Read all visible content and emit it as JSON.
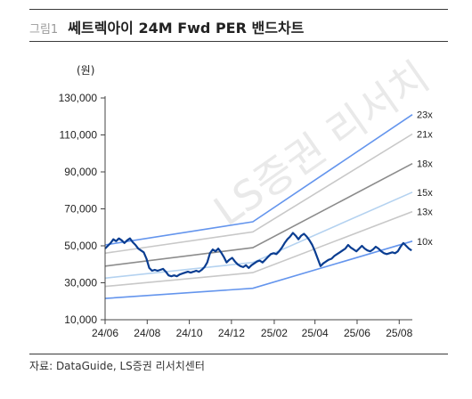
{
  "figure": {
    "label": "그림1",
    "title": "쎄트렉아이 24M Fwd PER 밴드차트",
    "source": "자료: DataGuide, LS증권 리서치센터",
    "watermark": "LS증권 리서치"
  },
  "chart_data": {
    "type": "line",
    "title": "쎄트렉아이 24M Fwd PER 밴드차트",
    "unit_label": "(원)",
    "xlabel": "",
    "ylabel": "",
    "ylim": [
      10000,
      130000
    ],
    "y_ticks": [
      10000,
      30000,
      50000,
      70000,
      90000,
      110000,
      130000
    ],
    "y_tick_labels": [
      "10,000",
      "30,000",
      "50,000",
      "70,000",
      "90,000",
      "110,000",
      "130,000"
    ],
    "x_ticks": [
      "2024-06-01",
      "2024-08-01",
      "2024-10-01",
      "2024-12-01",
      "2025-02-01",
      "2025-04-01",
      "2025-06-01",
      "2025-08-01"
    ],
    "x_tick_labels": [
      "24/06",
      "24/08",
      "24/10",
      "24/12",
      "25/02",
      "25/04",
      "25/06",
      "25/08"
    ],
    "x_range": [
      "2024-06-01",
      "2025-08-20"
    ],
    "grid": false,
    "legend": "right-end labels",
    "bands": [
      {
        "label": "23x",
        "color": "#6495ed",
        "points": [
          [
            "2024-06-01",
            50500
          ],
          [
            "2025-01-01",
            63000
          ],
          [
            "2025-08-20",
            121000
          ]
        ]
      },
      {
        "label": "21x",
        "color": "#c8c8c8",
        "points": [
          [
            "2024-06-01",
            46000
          ],
          [
            "2025-01-01",
            57500
          ],
          [
            "2025-08-20",
            110500
          ]
        ]
      },
      {
        "label": "18x",
        "color": "#8c8c8c",
        "points": [
          [
            "2024-06-01",
            39000
          ],
          [
            "2025-01-01",
            49000
          ],
          [
            "2025-08-20",
            94500
          ]
        ]
      },
      {
        "label": "15x",
        "color": "#b4d2f0",
        "points": [
          [
            "2024-06-01",
            32500
          ],
          [
            "2025-01-01",
            41000
          ],
          [
            "2025-08-20",
            79000
          ]
        ]
      },
      {
        "label": "13x",
        "color": "#c8c8c8",
        "points": [
          [
            "2024-06-01",
            28000
          ],
          [
            "2025-01-01",
            35500
          ],
          [
            "2025-08-20",
            68500
          ]
        ]
      },
      {
        "label": "10x",
        "color": "#6495ed",
        "points": [
          [
            "2024-06-01",
            21500
          ],
          [
            "2025-01-01",
            27000
          ],
          [
            "2025-08-20",
            52500
          ]
        ]
      }
    ],
    "series": [
      {
        "color": "#0a3d91",
        "points": [
          [
            "2024-06-01",
            48500
          ],
          [
            "2024-06-05",
            50000
          ],
          [
            "2024-06-09",
            51500
          ],
          [
            "2024-06-13",
            53500
          ],
          [
            "2024-06-17",
            52500
          ],
          [
            "2024-06-21",
            54000
          ],
          [
            "2024-06-25",
            53000
          ],
          [
            "2024-06-29",
            51500
          ],
          [
            "2024-07-03",
            53000
          ],
          [
            "2024-07-07",
            54000
          ],
          [
            "2024-07-11",
            52000
          ],
          [
            "2024-07-15",
            50500
          ],
          [
            "2024-07-19",
            48500
          ],
          [
            "2024-07-23",
            47500
          ],
          [
            "2024-07-27",
            46500
          ],
          [
            "2024-07-31",
            43000
          ],
          [
            "2024-08-04",
            38000
          ],
          [
            "2024-08-08",
            36500
          ],
          [
            "2024-08-12",
            37000
          ],
          [
            "2024-08-16",
            36500
          ],
          [
            "2024-08-20",
            37000
          ],
          [
            "2024-08-24",
            37500
          ],
          [
            "2024-08-28",
            36000
          ],
          [
            "2024-09-01",
            34000
          ],
          [
            "2024-09-05",
            33500
          ],
          [
            "2024-09-09",
            34000
          ],
          [
            "2024-09-13",
            33500
          ],
          [
            "2024-09-17",
            34500
          ],
          [
            "2024-09-21",
            35000
          ],
          [
            "2024-09-25",
            35500
          ],
          [
            "2024-09-29",
            36000
          ],
          [
            "2024-10-03",
            35500
          ],
          [
            "2024-10-07",
            36000
          ],
          [
            "2024-10-11",
            36500
          ],
          [
            "2024-10-15",
            36000
          ],
          [
            "2024-10-19",
            37000
          ],
          [
            "2024-10-23",
            38500
          ],
          [
            "2024-10-27",
            41000
          ],
          [
            "2024-10-31",
            46000
          ],
          [
            "2024-11-04",
            48000
          ],
          [
            "2024-11-08",
            47000
          ],
          [
            "2024-11-12",
            48500
          ],
          [
            "2024-11-16",
            46500
          ],
          [
            "2024-11-20",
            44000
          ],
          [
            "2024-11-24",
            41000
          ],
          [
            "2024-11-28",
            42500
          ],
          [
            "2024-12-02",
            43500
          ],
          [
            "2024-12-06",
            41500
          ],
          [
            "2024-12-10",
            40000
          ],
          [
            "2024-12-14",
            39000
          ],
          [
            "2024-12-18",
            38500
          ],
          [
            "2024-12-22",
            39500
          ],
          [
            "2024-12-26",
            38000
          ],
          [
            "2024-12-30",
            39500
          ],
          [
            "2025-01-03",
            40500
          ],
          [
            "2025-01-07",
            41500
          ],
          [
            "2025-01-11",
            42000
          ],
          [
            "2025-01-15",
            41000
          ],
          [
            "2025-01-19",
            42500
          ],
          [
            "2025-01-23",
            44000
          ],
          [
            "2025-01-27",
            45500
          ],
          [
            "2025-01-31",
            46000
          ],
          [
            "2025-02-04",
            45500
          ],
          [
            "2025-02-08",
            47000
          ],
          [
            "2025-02-12",
            49000
          ],
          [
            "2025-02-16",
            51500
          ],
          [
            "2025-02-20",
            53500
          ],
          [
            "2025-02-24",
            55000
          ],
          [
            "2025-02-28",
            57000
          ],
          [
            "2025-03-04",
            55500
          ],
          [
            "2025-03-08",
            53500
          ],
          [
            "2025-03-12",
            55500
          ],
          [
            "2025-03-16",
            56500
          ],
          [
            "2025-03-20",
            55000
          ],
          [
            "2025-03-24",
            53000
          ],
          [
            "2025-03-28",
            50500
          ],
          [
            "2025-04-01",
            47000
          ],
          [
            "2025-04-05",
            43000
          ],
          [
            "2025-04-09",
            39000
          ],
          [
            "2025-04-13",
            40500
          ],
          [
            "2025-04-17",
            41500
          ],
          [
            "2025-04-21",
            42500
          ],
          [
            "2025-04-25",
            43000
          ],
          [
            "2025-04-29",
            44500
          ],
          [
            "2025-05-03",
            45500
          ],
          [
            "2025-05-07",
            46500
          ],
          [
            "2025-05-11",
            47500
          ],
          [
            "2025-05-15",
            48500
          ],
          [
            "2025-05-19",
            50500
          ],
          [
            "2025-05-23",
            49000
          ],
          [
            "2025-05-27",
            48000
          ],
          [
            "2025-05-31",
            47000
          ],
          [
            "2025-06-04",
            48500
          ],
          [
            "2025-06-08",
            50000
          ],
          [
            "2025-06-12",
            48500
          ],
          [
            "2025-06-16",
            47500
          ],
          [
            "2025-06-20",
            47000
          ],
          [
            "2025-06-24",
            48000
          ],
          [
            "2025-06-28",
            49500
          ],
          [
            "2025-07-02",
            48500
          ],
          [
            "2025-07-06",
            47000
          ],
          [
            "2025-07-10",
            46000
          ],
          [
            "2025-07-14",
            45500
          ],
          [
            "2025-07-18",
            46000
          ],
          [
            "2025-07-22",
            46500
          ],
          [
            "2025-07-26",
            46000
          ],
          [
            "2025-07-30",
            47000
          ],
          [
            "2025-08-03",
            49500
          ],
          [
            "2025-08-07",
            51500
          ],
          [
            "2025-08-11",
            50000
          ],
          [
            "2025-08-15",
            48500
          ],
          [
            "2025-08-19",
            47500
          ]
        ]
      }
    ]
  }
}
